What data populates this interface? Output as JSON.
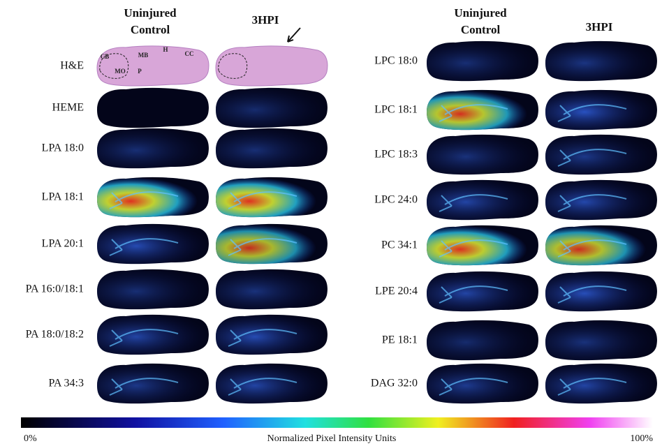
{
  "panels": [
    {
      "headers": [
        [
          "Uninjured",
          "Control"
        ],
        [
          "3HPI"
        ]
      ],
      "rows": [
        "H&E",
        "HEME",
        "LPA 18:0",
        "LPA 18:1",
        "LPA 20:1",
        "PA 16:0/18:1",
        "PA 18:0/18:2",
        "PA 34:3"
      ]
    },
    {
      "headers": [
        [
          "Uninjured",
          "Control"
        ],
        [
          "3HPI"
        ]
      ],
      "rows": [
        "LPC 18:0",
        "LPC 18:1",
        "LPC 18:3",
        "LPC 24:0",
        "PC 34:1",
        "LPE 20:4",
        "PE 18:1",
        "DAG 32:0"
      ]
    }
  ],
  "he_labels": [
    "CB",
    "MB",
    "H",
    "CC",
    "MO",
    "P"
  ],
  "colorbar": {
    "min_label": "0%",
    "title": "Normalized Pixel Intensity Units",
    "max_label": "100%"
  }
}
